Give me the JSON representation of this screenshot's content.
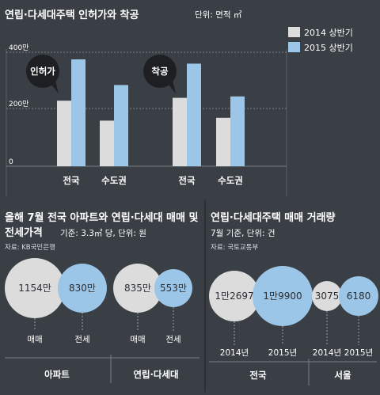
{
  "colors": {
    "y2014": "#dcdcdc",
    "y2015": "#9cc6e8",
    "grid": "#7a7f85",
    "dark_bubble": "#1d1f22"
  },
  "top_chart": {
    "title": "연립·다세대주택 인허가와 착공",
    "unit": "단위: 면적 ㎡",
    "legend": [
      "2014 상반기",
      "2015 상반기"
    ],
    "y_ticks": [
      "400만",
      "200만",
      "0"
    ],
    "groups": [
      {
        "callout": "인허가",
        "categories": [
          "전국",
          "수도권"
        ]
      },
      {
        "callout": "착공",
        "categories": [
          "전국",
          "수도권"
        ]
      }
    ]
  },
  "bottom_left": {
    "title_line1": "올해 7월 전국 아파트와 연립·다세대 매매 및",
    "title_line2": "전세가격",
    "unit": "기준: 3.3㎡ 당, 단위: 원",
    "source": "자료: KB국민은행",
    "groups": [
      "아파트",
      "연립·다세대"
    ],
    "item_labels": [
      "매매",
      "전세",
      "매매",
      "전세"
    ],
    "value_labels": [
      "1154만",
      "830만",
      "835만",
      "553만"
    ]
  },
  "bottom_right": {
    "title_line1": "연립·다세대주택 매매 거래량",
    "unit": "7월 기준, 단위: 건",
    "source": "자료: 국토교통부",
    "groups": [
      "전국",
      "서울"
    ],
    "item_labels": [
      "2014년",
      "2015년",
      "2014년",
      "2015년"
    ],
    "value_labels": [
      "1만2697",
      "1만9900",
      "3075",
      "6180"
    ]
  },
  "chart_data": [
    {
      "type": "bar",
      "title": "연립·다세대주택 인허가와 착공",
      "unit": "단위: 면적 ㎡",
      "groups": [
        "인허가",
        "인허가",
        "착공",
        "착공"
      ],
      "categories": [
        "전국",
        "수도권",
        "전국",
        "수도권"
      ],
      "ylim": [
        0,
        4000000
      ],
      "series": [
        {
          "name": "2014 상반기",
          "values": [
            2300000,
            1600000,
            2400000,
            1700000
          ]
        },
        {
          "name": "2015 상반기",
          "values": [
            3750000,
            2850000,
            3600000,
            2450000
          ]
        }
      ]
    },
    {
      "type": "bubble",
      "title": "올해 7월 전국 아파트와 연립·다세대 매매 및 전세가격",
      "unit": "기준: 3.3㎡ 당, 단위: 원",
      "groups": [
        "아파트",
        "아파트",
        "연립·다세대",
        "연립·다세대"
      ],
      "categories": [
        "매매",
        "전세",
        "매매",
        "전세"
      ],
      "values": [
        11540000,
        8300000,
        8350000,
        5530000
      ]
    },
    {
      "type": "bubble",
      "title": "연립·다세대주택 매매 거래량",
      "unit": "7월 기준, 단위: 건",
      "groups": [
        "전국",
        "전국",
        "서울",
        "서울"
      ],
      "categories": [
        "2014년",
        "2015년",
        "2014년",
        "2015년"
      ],
      "values": [
        12697,
        19900,
        3075,
        6180
      ]
    }
  ]
}
